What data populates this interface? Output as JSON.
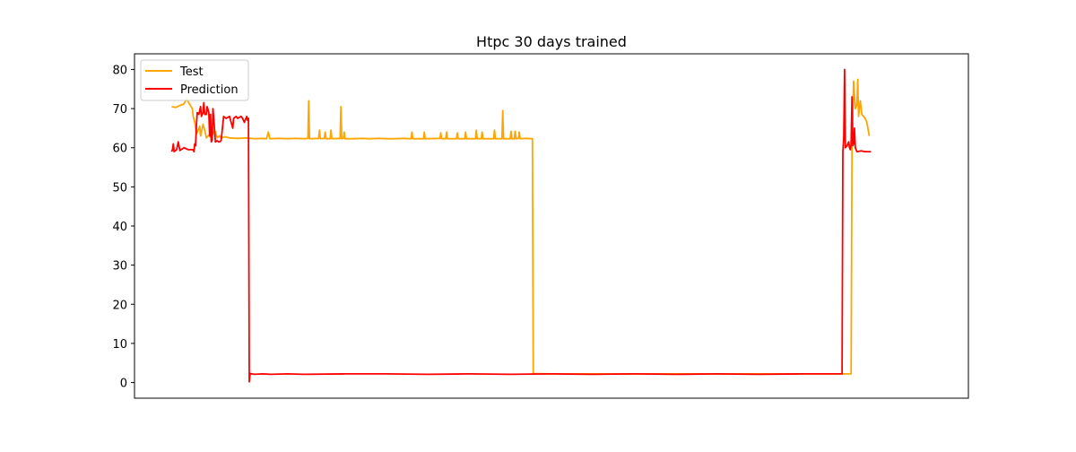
{
  "chart_data": {
    "type": "line",
    "title": "Htpc 30 days trained",
    "xlabel": "",
    "ylabel": "",
    "ylim": [
      -4,
      84
    ],
    "xlim": [
      -5,
      1005
    ],
    "yticks": [
      0,
      10,
      20,
      30,
      40,
      50,
      60,
      70,
      80
    ],
    "x_ticks_visible": false,
    "grid": false,
    "legend_position": "top-left",
    "series": [
      {
        "name": "Test",
        "color": "#ffa500",
        "points": [
          [
            40,
            70.5
          ],
          [
            45,
            70.3
          ],
          [
            50,
            70.8
          ],
          [
            55,
            71.2
          ],
          [
            58,
            72.5
          ],
          [
            62,
            71.0
          ],
          [
            65,
            70.0
          ],
          [
            66,
            68.0
          ],
          [
            68,
            66.5
          ],
          [
            70,
            63.5
          ],
          [
            72,
            64.5
          ],
          [
            74,
            65.5
          ],
          [
            75,
            63.0
          ],
          [
            78,
            66.0
          ],
          [
            80,
            64.5
          ],
          [
            82,
            62.5
          ],
          [
            85,
            63.2
          ],
          [
            88,
            62.5
          ],
          [
            92,
            64.5
          ],
          [
            95,
            62.6
          ],
          [
            98,
            63.0
          ],
          [
            100,
            62.5
          ],
          [
            104,
            62.8
          ],
          [
            110,
            62.5
          ],
          [
            120,
            62.4
          ],
          [
            130,
            62.5
          ],
          [
            140,
            62.3
          ],
          [
            150,
            62.4
          ],
          [
            155,
            62.3
          ],
          [
            157,
            64.0
          ],
          [
            159,
            62.3
          ],
          [
            170,
            62.4
          ],
          [
            180,
            62.3
          ],
          [
            190,
            62.4
          ],
          [
            200,
            62.3
          ],
          [
            205,
            62.4
          ],
          [
            206,
            72.0
          ],
          [
            207,
            62.3
          ],
          [
            218,
            62.4
          ],
          [
            219,
            64.5
          ],
          [
            220,
            62.3
          ],
          [
            225,
            62.4
          ],
          [
            226,
            64.0
          ],
          [
            227,
            62.3
          ],
          [
            232,
            62.3
          ],
          [
            233,
            64.5
          ],
          [
            234,
            62.3
          ],
          [
            244,
            62.4
          ],
          [
            245,
            70.5
          ],
          [
            246,
            62.3
          ],
          [
            248,
            62.4
          ],
          [
            249,
            64.0
          ],
          [
            250,
            62.3
          ],
          [
            260,
            62.3
          ],
          [
            270,
            62.4
          ],
          [
            280,
            62.3
          ],
          [
            290,
            62.4
          ],
          [
            300,
            62.3
          ],
          [
            310,
            62.3
          ],
          [
            320,
            62.4
          ],
          [
            330,
            62.3
          ],
          [
            331,
            64.0
          ],
          [
            332,
            62.3
          ],
          [
            345,
            62.3
          ],
          [
            346,
            64.0
          ],
          [
            347,
            62.3
          ],
          [
            365,
            62.4
          ],
          [
            366,
            63.8
          ],
          [
            367,
            62.3
          ],
          [
            372,
            62.3
          ],
          [
            373,
            64.0
          ],
          [
            374,
            62.3
          ],
          [
            385,
            62.3
          ],
          [
            386,
            63.8
          ],
          [
            387,
            62.3
          ],
          [
            395,
            62.3
          ],
          [
            396,
            64.0
          ],
          [
            397,
            62.3
          ],
          [
            408,
            62.3
          ],
          [
            409,
            64.5
          ],
          [
            410,
            62.3
          ],
          [
            415,
            62.3
          ],
          [
            416,
            64.0
          ],
          [
            417,
            62.3
          ],
          [
            430,
            62.3
          ],
          [
            431,
            64.5
          ],
          [
            432,
            62.3
          ],
          [
            440,
            62.3
          ],
          [
            441,
            69.5
          ],
          [
            442,
            62.3
          ],
          [
            450,
            62.3
          ],
          [
            451,
            64.2
          ],
          [
            452,
            62.3
          ],
          [
            455,
            62.3
          ],
          [
            456,
            64.2
          ],
          [
            457,
            62.3
          ],
          [
            460,
            62.4
          ],
          [
            461,
            64.0
          ],
          [
            462,
            62.3
          ],
          [
            470,
            62.4
          ],
          [
            477,
            62.3
          ],
          [
            478,
            2.3
          ],
          [
            500,
            2.2
          ],
          [
            600,
            2.2
          ],
          [
            700,
            2.2
          ],
          [
            800,
            2.2
          ],
          [
            863,
            2.2
          ],
          [
            864,
            60.5
          ],
          [
            866,
            77.0
          ],
          [
            868,
            70.0
          ],
          [
            870,
            71.0
          ],
          [
            871,
            77.5
          ],
          [
            872,
            68.0
          ],
          [
            874,
            72.0
          ],
          [
            876,
            68.5
          ],
          [
            880,
            67.5
          ],
          [
            882,
            66.5
          ],
          [
            885,
            63.0
          ]
        ]
      },
      {
        "name": "Prediction",
        "color": "#ff0000",
        "points": [
          [
            40,
            59.0
          ],
          [
            41,
            59.5
          ],
          [
            42,
            61.0
          ],
          [
            43,
            59.0
          ],
          [
            46,
            59.5
          ],
          [
            48,
            61.5
          ],
          [
            50,
            59.3
          ],
          [
            55,
            60.0
          ],
          [
            60,
            59.5
          ],
          [
            66,
            59.5
          ],
          [
            67,
            59.0
          ],
          [
            68,
            61.0
          ],
          [
            69,
            60.5
          ],
          [
            70,
            66.0
          ],
          [
            71,
            69.0
          ],
          [
            73,
            68.5
          ],
          [
            75,
            70.5
          ],
          [
            76,
            68.0
          ],
          [
            78,
            69.0
          ],
          [
            79,
            71.5
          ],
          [
            80,
            68.5
          ],
          [
            82,
            68.5
          ],
          [
            83,
            70.5
          ],
          [
            85,
            69.0
          ],
          [
            86,
            63.0
          ],
          [
            87,
            68.5
          ],
          [
            88,
            61.5
          ],
          [
            89,
            62.0
          ],
          [
            90,
            70.0
          ],
          [
            91,
            67.5
          ],
          [
            93,
            61.5
          ],
          [
            95,
            61.8
          ],
          [
            97,
            61.5
          ],
          [
            99,
            61.6
          ],
          [
            100,
            62.0
          ],
          [
            103,
            68.0
          ],
          [
            106,
            67.5
          ],
          [
            110,
            68.0
          ],
          [
            114,
            65.0
          ],
          [
            115,
            67.5
          ],
          [
            118,
            68.0
          ],
          [
            120,
            67.5
          ],
          [
            124,
            68.0
          ],
          [
            126,
            67.5
          ],
          [
            128,
            66.5
          ],
          [
            130,
            67.5
          ],
          [
            131,
            68.0
          ],
          [
            132,
            67.0
          ],
          [
            133,
            67.5
          ],
          [
            134,
            0.2
          ],
          [
            135,
            2.3
          ],
          [
            140,
            2.1
          ],
          [
            150,
            2.2
          ],
          [
            160,
            2.1
          ],
          [
            180,
            2.2
          ],
          [
            200,
            2.1
          ],
          [
            250,
            2.2
          ],
          [
            300,
            2.2
          ],
          [
            350,
            2.1
          ],
          [
            400,
            2.2
          ],
          [
            450,
            2.1
          ],
          [
            500,
            2.2
          ],
          [
            550,
            2.1
          ],
          [
            600,
            2.2
          ],
          [
            650,
            2.1
          ],
          [
            700,
            2.2
          ],
          [
            750,
            2.1
          ],
          [
            800,
            2.2
          ],
          [
            850,
            2.2
          ],
          [
            852,
            2.2
          ],
          [
            853,
            59.0
          ],
          [
            854,
            62.5
          ],
          [
            855,
            80.0
          ],
          [
            856,
            60.0
          ],
          [
            858,
            60.5
          ],
          [
            860,
            61.5
          ],
          [
            861,
            60.0
          ],
          [
            862,
            59.5
          ],
          [
            863,
            61.0
          ],
          [
            864,
            73.0
          ],
          [
            865,
            60.5
          ],
          [
            866,
            61.0
          ],
          [
            867,
            65.0
          ],
          [
            868,
            60.0
          ],
          [
            870,
            59.0
          ],
          [
            875,
            59.2
          ],
          [
            880,
            59.0
          ],
          [
            887,
            59.0
          ]
        ]
      }
    ]
  },
  "colors": {
    "test": "#ffa500",
    "prediction": "#ff0000",
    "axes": "#000000"
  }
}
